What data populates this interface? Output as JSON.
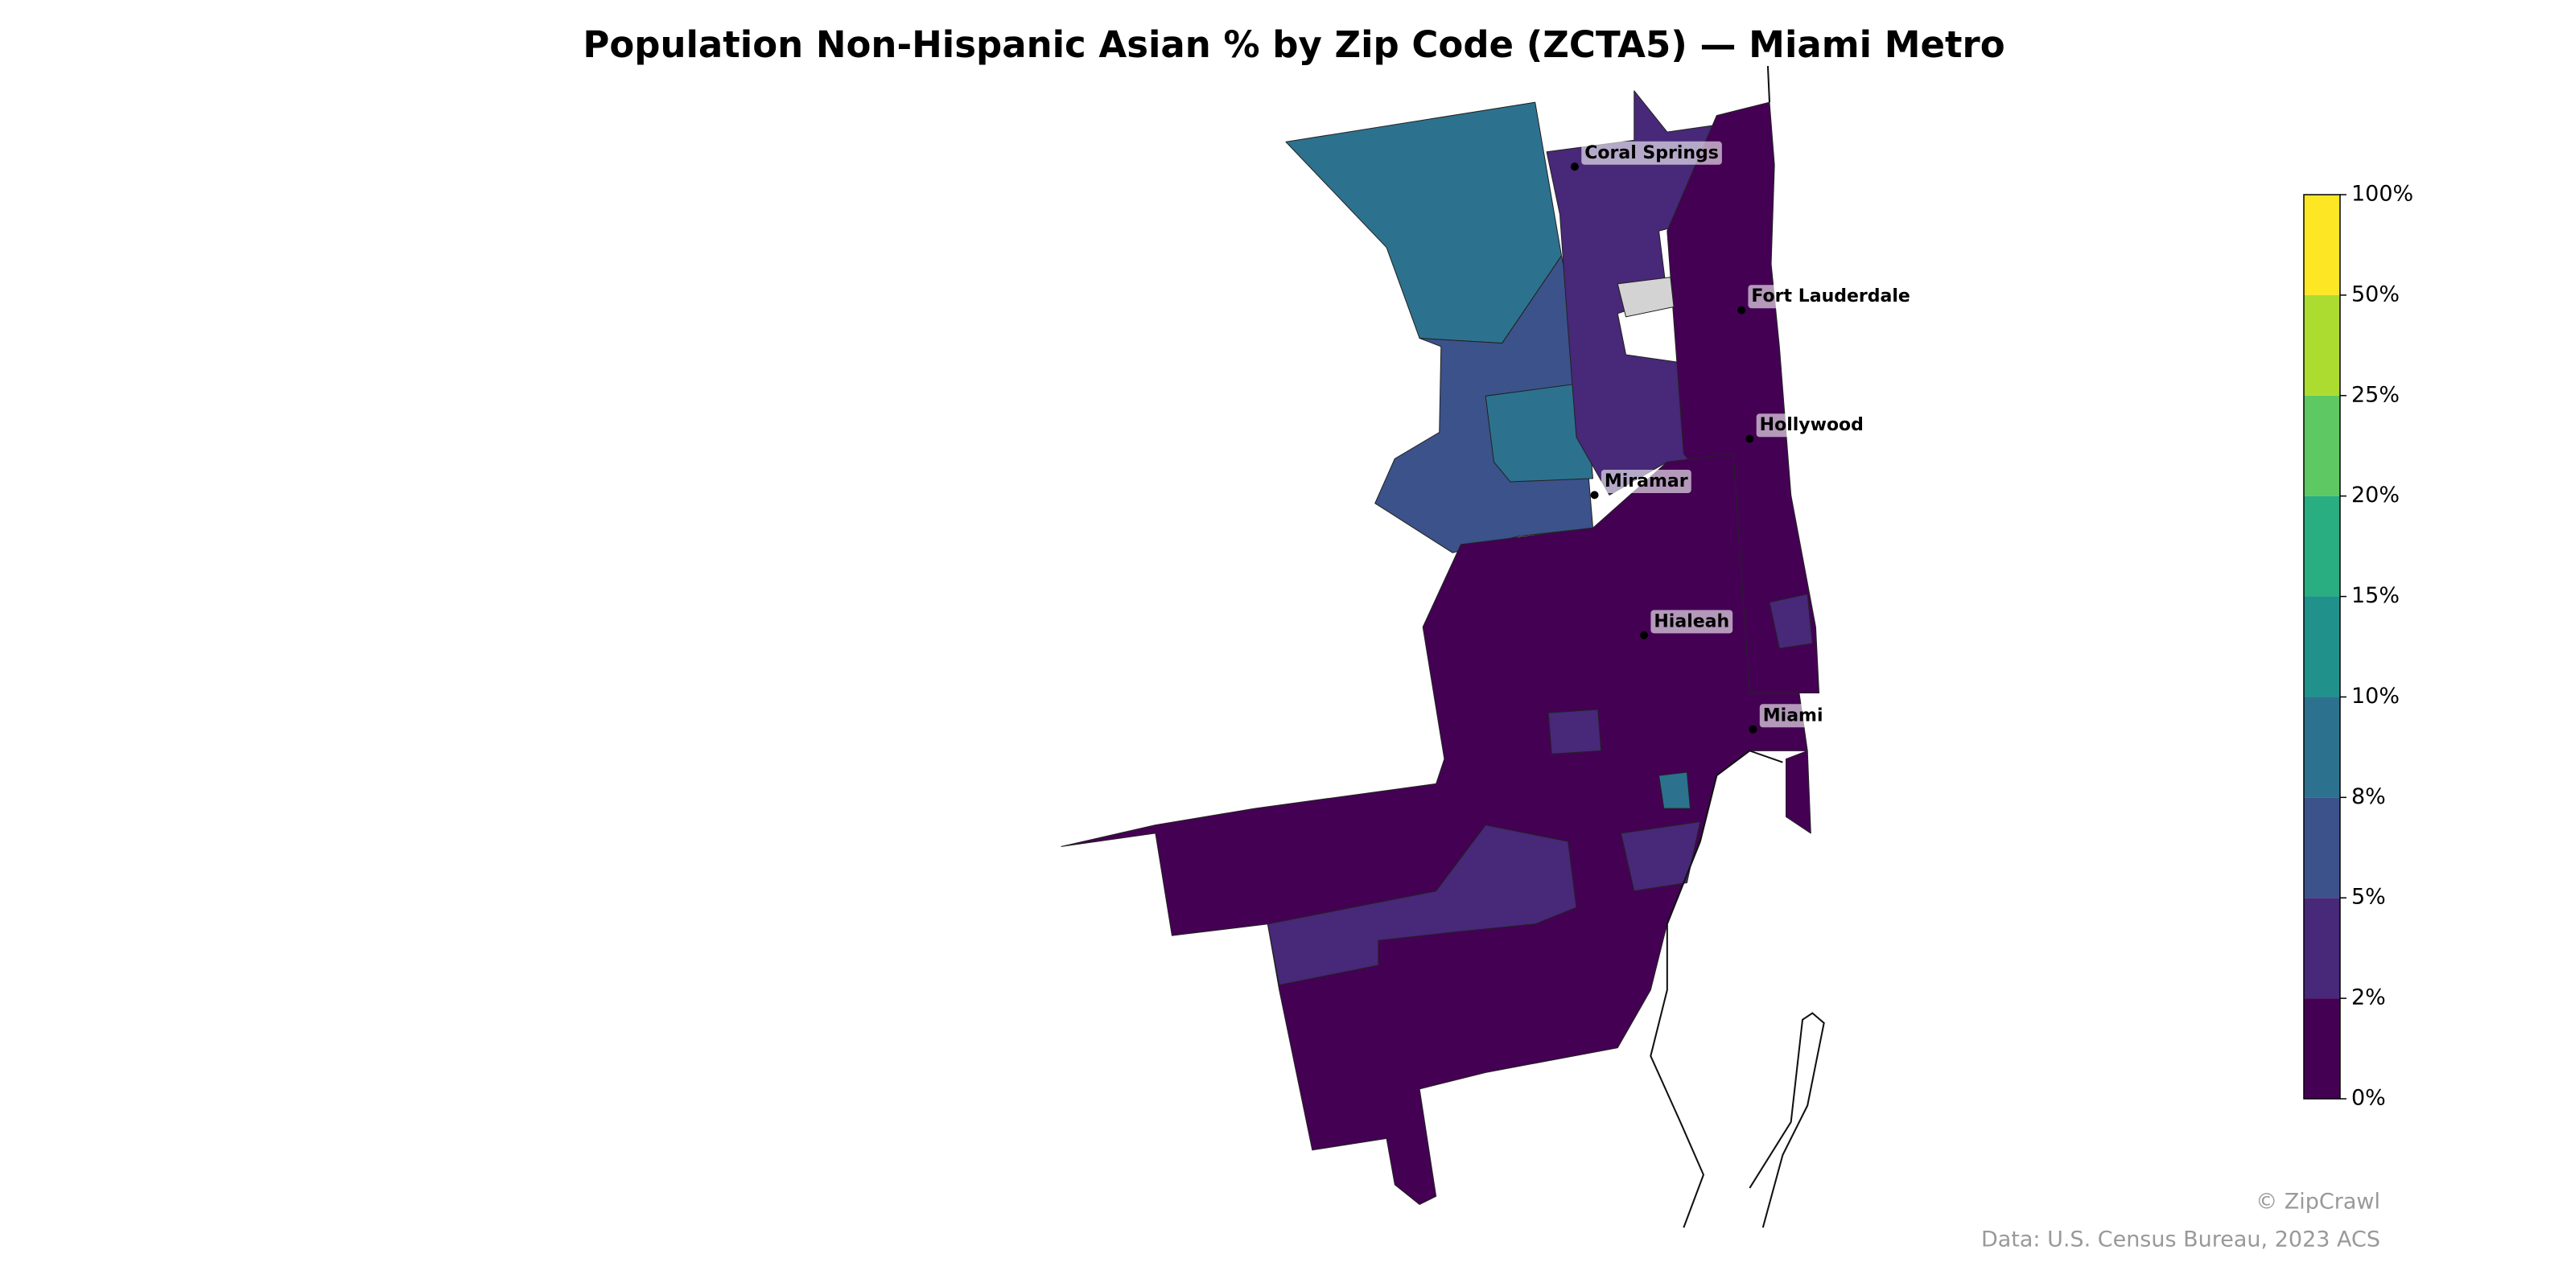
{
  "title": "Population Non-Hispanic Asian % by Zip Code (ZCTA5) — Miami Metro",
  "cities": [
    "Coral Springs",
    "Fort Lauderdale",
    "Hollywood",
    "Miramar",
    "Hialeah",
    "Miami"
  ],
  "colorbar": {
    "ticks": [
      {
        "value": 0,
        "label": "0%"
      },
      {
        "value": 2,
        "label": "2%"
      },
      {
        "value": 5,
        "label": "5%"
      },
      {
        "value": 8,
        "label": "8%"
      },
      {
        "value": 10,
        "label": "10%"
      },
      {
        "value": 15,
        "label": "15%"
      },
      {
        "value": 20,
        "label": "20%"
      },
      {
        "value": 25,
        "label": "25%"
      },
      {
        "value": 50,
        "label": "50%"
      },
      {
        "value": 100,
        "label": "100%"
      }
    ],
    "colors": [
      "#440154",
      "#482878",
      "#3b528b",
      "#2c728e",
      "#21918c",
      "#28ae80",
      "#5ec962",
      "#addc30",
      "#fde725"
    ]
  },
  "credits": [
    "© ZipCrawl",
    "Data: U.S. Census Bureau, 2023 ACS"
  ]
}
